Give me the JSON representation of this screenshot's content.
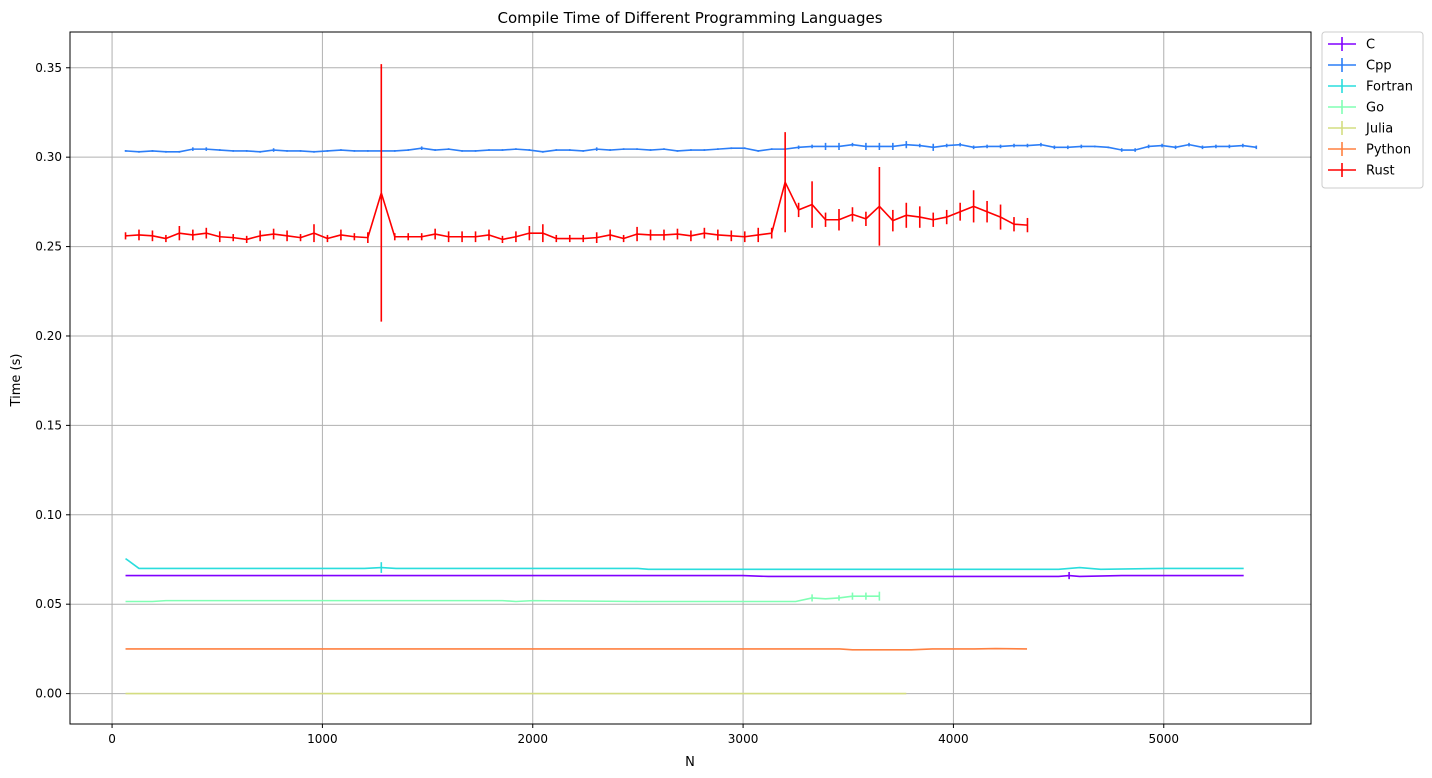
{
  "chart_data": {
    "type": "line",
    "title": "Compile Time of Different Programming Languages",
    "xlabel": "N",
    "ylabel": "Time (s)",
    "xlim": [
      -200,
      5700
    ],
    "ylim": [
      -0.017,
      0.37
    ],
    "xticks": [
      0,
      1000,
      2000,
      3000,
      4000,
      5000
    ],
    "xtick_labels": [
      "0",
      "1000",
      "2000",
      "3000",
      "4000",
      "5000"
    ],
    "yticks": [
      0.0,
      0.05,
      0.1,
      0.15,
      0.2,
      0.25,
      0.3,
      0.35
    ],
    "ytick_labels": [
      "0.00",
      "0.05",
      "0.10",
      "0.15",
      "0.20",
      "0.25",
      "0.30",
      "0.35"
    ],
    "grid": true,
    "legend_position": "outside-top-right",
    "series": [
      {
        "name": "C",
        "color": "#8000ff",
        "x": [
          64,
          500,
          1000,
          1500,
          2000,
          2500,
          3000,
          3120,
          3500,
          4000,
          4500,
          4550,
          4600,
          4800,
          5000,
          5380
        ],
        "y": [
          0.066,
          0.066,
          0.066,
          0.066,
          0.066,
          0.066,
          0.066,
          0.0655,
          0.0655,
          0.0655,
          0.0655,
          0.066,
          0.0655,
          0.066,
          0.066,
          0.066
        ],
        "err": [
          0,
          0,
          0,
          0,
          0,
          0,
          0,
          0,
          0,
          0,
          0,
          0.002,
          0,
          0,
          0,
          0
        ]
      },
      {
        "name": "Cpp",
        "color": "#2c7ef7",
        "x": [
          64,
          128,
          192,
          256,
          320,
          384,
          448,
          512,
          576,
          640,
          704,
          768,
          832,
          896,
          960,
          1024,
          1088,
          1152,
          1216,
          1280,
          1344,
          1408,
          1472,
          1536,
          1600,
          1664,
          1728,
          1792,
          1856,
          1920,
          1984,
          2048,
          2112,
          2176,
          2240,
          2304,
          2368,
          2432,
          2496,
          2560,
          2624,
          2688,
          2752,
          2816,
          2880,
          2944,
          3008,
          3072,
          3136,
          3200,
          3264,
          3328,
          3392,
          3456,
          3520,
          3584,
          3648,
          3712,
          3776,
          3840,
          3904,
          3968,
          4032,
          4096,
          4160,
          4224,
          4288,
          4352,
          4416,
          4480,
          4544,
          4608,
          4672,
          4736,
          4800,
          4864,
          4928,
          4992,
          5056,
          5120,
          5184,
          5248,
          5312,
          5376,
          5440
        ],
        "y": [
          0.3035,
          0.303,
          0.3035,
          0.303,
          0.303,
          0.3045,
          0.3045,
          0.304,
          0.3035,
          0.3035,
          0.303,
          0.304,
          0.3035,
          0.3035,
          0.303,
          0.3035,
          0.304,
          0.3035,
          0.3035,
          0.3035,
          0.3035,
          0.304,
          0.305,
          0.304,
          0.3045,
          0.3035,
          0.3035,
          0.304,
          0.304,
          0.3045,
          0.304,
          0.303,
          0.304,
          0.304,
          0.3035,
          0.3045,
          0.304,
          0.3045,
          0.3045,
          0.304,
          0.3045,
          0.3035,
          0.304,
          0.304,
          0.3045,
          0.305,
          0.305,
          0.3035,
          0.3045,
          0.3045,
          0.3055,
          0.306,
          0.306,
          0.306,
          0.307,
          0.306,
          0.306,
          0.306,
          0.307,
          0.3065,
          0.3055,
          0.3065,
          0.307,
          0.3055,
          0.306,
          0.306,
          0.3065,
          0.3065,
          0.307,
          0.3055,
          0.3055,
          0.306,
          0.306,
          0.3055,
          0.304,
          0.304,
          0.306,
          0.3065,
          0.3055,
          0.307,
          0.3055,
          0.306,
          0.306,
          0.3065,
          0.3055
        ],
        "err": [
          0.0005,
          0.0005,
          0.0005,
          0.0005,
          0.0005,
          0.001,
          0.001,
          0.0005,
          0.0005,
          0.0005,
          0.0005,
          0.001,
          0.0005,
          0.0005,
          0.0005,
          0.0005,
          0.0005,
          0.0005,
          0.0005,
          0.0005,
          0.0005,
          0.0005,
          0.001,
          0.0005,
          0.0005,
          0.0005,
          0.0005,
          0.0005,
          0.0005,
          0.0005,
          0.0005,
          0.0005,
          0.0005,
          0.0005,
          0.0005,
          0.001,
          0.0005,
          0.0005,
          0.0005,
          0.0005,
          0.0005,
          0.0005,
          0.0005,
          0.0005,
          0.0005,
          0.0005,
          0.0005,
          0.0005,
          0.0005,
          0.0005,
          0.001,
          0.001,
          0.002,
          0.002,
          0.001,
          0.002,
          0.002,
          0.002,
          0.002,
          0.001,
          0.002,
          0.001,
          0.001,
          0.001,
          0.001,
          0.001,
          0.001,
          0.001,
          0.001,
          0.001,
          0.001,
          0.001,
          0.0005,
          0.0005,
          0.001,
          0.001,
          0.001,
          0.001,
          0.001,
          0.001,
          0.001,
          0.001,
          0.001,
          0.001,
          0.001
        ]
      },
      {
        "name": "Fortran",
        "color": "#2adddd",
        "x": [
          64,
          128,
          500,
          1000,
          1200,
          1280,
          1350,
          1500,
          2000,
          2500,
          2550,
          3000,
          3500,
          4000,
          4500,
          4600,
          4700,
          5000,
          5380
        ],
        "y": [
          0.0755,
          0.07,
          0.07,
          0.07,
          0.07,
          0.0705,
          0.07,
          0.07,
          0.07,
          0.07,
          0.0695,
          0.0695,
          0.0695,
          0.0695,
          0.0695,
          0.0705,
          0.0695,
          0.07,
          0.07
        ],
        "err": [
          0,
          0,
          0,
          0,
          0,
          0.003,
          0,
          0,
          0,
          0,
          0,
          0,
          0,
          0,
          0,
          0,
          0,
          0,
          0
        ]
      },
      {
        "name": "Go",
        "color": "#80ffb4",
        "x": [
          64,
          192,
          256,
          512,
          1000,
          1500,
          1856,
          1920,
          2000,
          2500,
          3000,
          3250,
          3328,
          3392,
          3456,
          3520,
          3584,
          3648
        ],
        "y": [
          0.0515,
          0.0515,
          0.052,
          0.052,
          0.052,
          0.052,
          0.052,
          0.0515,
          0.052,
          0.0515,
          0.0515,
          0.0515,
          0.0535,
          0.053,
          0.0535,
          0.0545,
          0.0545,
          0.0545
        ],
        "err": [
          0,
          0,
          0,
          0,
          0,
          0,
          0,
          0,
          0,
          0,
          0,
          0,
          0.002,
          0,
          0.0015,
          0.002,
          0.002,
          0.0025
        ]
      },
      {
        "name": "Julia",
        "color": "#d4dd80",
        "x": [
          64,
          1000,
          2000,
          3000,
          3776
        ],
        "y": [
          0.0,
          0.0,
          0.0,
          0.0,
          0.0
        ],
        "err": [
          0,
          0,
          0,
          0,
          0
        ]
      },
      {
        "name": "Python",
        "color": "#ff8040",
        "x": [
          64,
          1000,
          2000,
          3000,
          3460,
          3520,
          3800,
          3900,
          4100,
          4200,
          4350
        ],
        "y": [
          0.025,
          0.025,
          0.025,
          0.025,
          0.025,
          0.0245,
          0.0245,
          0.025,
          0.025,
          0.0252,
          0.025
        ],
        "err": [
          0,
          0,
          0,
          0,
          0,
          0,
          0,
          0,
          0,
          0,
          0
        ]
      },
      {
        "name": "Rust",
        "color": "#ff0000",
        "x": [
          64,
          128,
          192,
          256,
          320,
          384,
          448,
          512,
          576,
          640,
          704,
          768,
          832,
          896,
          960,
          1024,
          1088,
          1152,
          1216,
          1280,
          1344,
          1408,
          1472,
          1536,
          1600,
          1664,
          1728,
          1792,
          1856,
          1920,
          1984,
          2048,
          2112,
          2176,
          2240,
          2304,
          2368,
          2432,
          2496,
          2560,
          2624,
          2688,
          2752,
          2816,
          2880,
          2944,
          3008,
          3072,
          3136,
          3200,
          3264,
          3328,
          3392,
          3456,
          3520,
          3584,
          3648,
          3712,
          3776,
          3840,
          3904,
          3968,
          4032,
          4096,
          4160,
          4224,
          4288,
          4352
        ],
        "y": [
          0.256,
          0.2565,
          0.256,
          0.2545,
          0.2575,
          0.2565,
          0.2575,
          0.2555,
          0.255,
          0.254,
          0.256,
          0.257,
          0.256,
          0.255,
          0.2575,
          0.2545,
          0.2565,
          0.2555,
          0.255,
          0.28,
          0.2555,
          0.2555,
          0.2555,
          0.257,
          0.2555,
          0.2555,
          0.2555,
          0.2565,
          0.254,
          0.2555,
          0.2575,
          0.2575,
          0.2545,
          0.2545,
          0.2545,
          0.255,
          0.2565,
          0.2545,
          0.257,
          0.2565,
          0.2565,
          0.257,
          0.256,
          0.2575,
          0.2565,
          0.256,
          0.2555,
          0.2565,
          0.2575,
          0.286,
          0.2705,
          0.2735,
          0.265,
          0.265,
          0.268,
          0.2655,
          0.2725,
          0.2645,
          0.2675,
          0.2665,
          0.265,
          0.2665,
          0.2695,
          0.2725,
          0.2695,
          0.2665,
          0.2625,
          0.262
        ],
        "err": [
          0.002,
          0.003,
          0.003,
          0.002,
          0.004,
          0.003,
          0.003,
          0.003,
          0.002,
          0.002,
          0.003,
          0.003,
          0.003,
          0.002,
          0.005,
          0.002,
          0.003,
          0.002,
          0.003,
          0.072,
          0.002,
          0.002,
          0.002,
          0.003,
          0.003,
          0.003,
          0.003,
          0.003,
          0.002,
          0.003,
          0.004,
          0.005,
          0.002,
          0.002,
          0.002,
          0.003,
          0.003,
          0.002,
          0.004,
          0.003,
          0.003,
          0.003,
          0.003,
          0.003,
          0.003,
          0.003,
          0.003,
          0.004,
          0.003,
          0.028,
          0.004,
          0.013,
          0.004,
          0.006,
          0.004,
          0.004,
          0.022,
          0.006,
          0.007,
          0.006,
          0.004,
          0.004,
          0.005,
          0.009,
          0.006,
          0.007,
          0.004,
          0.004
        ]
      }
    ]
  }
}
